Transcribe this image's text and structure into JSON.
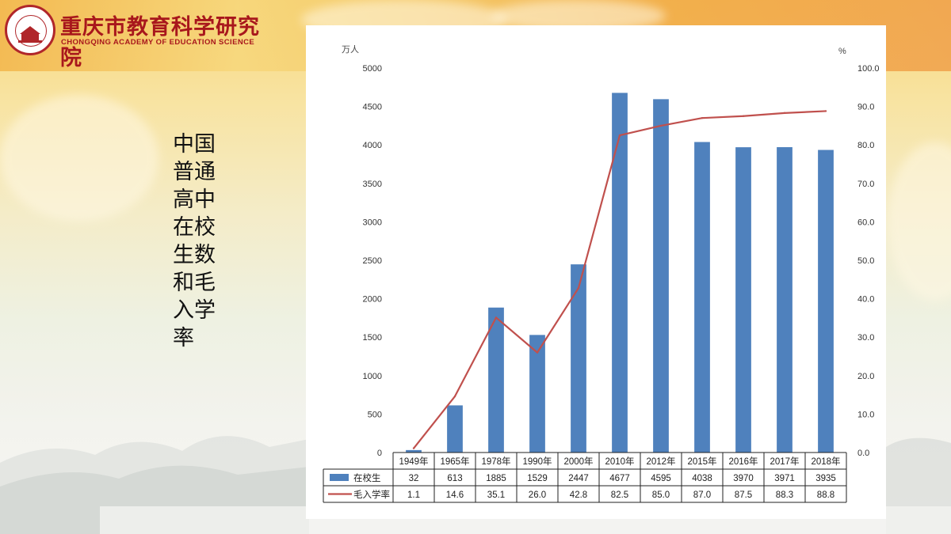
{
  "header": {
    "org_name_cn": "重庆市教育科学研究院",
    "org_name_en": "CHONGQING ACADEMY OF EDUCATION SCIENCE"
  },
  "side_title": "中国普通高中在校生数和毛入学率",
  "colors": {
    "bar": "#4f81bd",
    "line": "#c0504d",
    "brand_red": "#a8171c"
  },
  "chart_data": {
    "type": "bar",
    "left_unit": "万人",
    "right_unit": "%",
    "categories": [
      "1949年",
      "1965年",
      "1978年",
      "1990年",
      "2000年",
      "2010年",
      "2012年",
      "2015年",
      "2016年",
      "2017年",
      "2018年"
    ],
    "left_axis": {
      "min": 0,
      "max": 5000,
      "ticks": [
        "0",
        "500",
        "1000",
        "1500",
        "2000",
        "2500",
        "3000",
        "3500",
        "4000",
        "4500",
        "5000"
      ]
    },
    "right_axis": {
      "min": 0,
      "max": 100,
      "ticks": [
        "0.0",
        "10.0",
        "20.0",
        "30.0",
        "40.0",
        "50.0",
        "60.0",
        "70.0",
        "80.0",
        "90.0",
        "100.0"
      ]
    },
    "series": [
      {
        "name": "在校生",
        "kind": "bar",
        "axis": "left",
        "values": [
          32,
          613,
          1885,
          1529,
          2447,
          4677,
          4595,
          4038,
          3970,
          3971,
          3935
        ],
        "labels": [
          "32",
          "613",
          "1885",
          "1529",
          "2447",
          "4677",
          "4595",
          "4038",
          "3970",
          "3971",
          "3935"
        ]
      },
      {
        "name": "毛入学率",
        "kind": "line",
        "axis": "right",
        "values": [
          1.1,
          14.6,
          35.1,
          26.0,
          42.8,
          82.5,
          85.0,
          87.0,
          87.5,
          88.3,
          88.8
        ],
        "labels": [
          "1.1",
          "14.6",
          "35.1",
          "26.0",
          "42.8",
          "82.5",
          "85.0",
          "87.0",
          "87.5",
          "88.3",
          "88.8"
        ]
      }
    ],
    "grid": false,
    "legend": "data-table"
  }
}
